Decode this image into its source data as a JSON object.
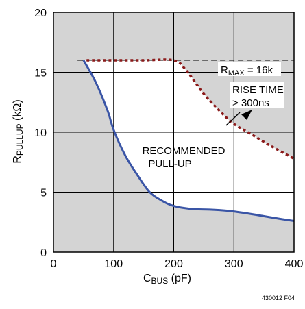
{
  "chart_data": {
    "type": "line",
    "title": "",
    "xlabel": {
      "main": "C",
      "sub": "BUS",
      "unit": " (pF)"
    },
    "ylabel": {
      "main": "R",
      "sub": "PULLUP",
      "unit": " (kΩ)"
    },
    "xlim": [
      0,
      400
    ],
    "ylim": [
      0,
      20
    ],
    "xticks": [
      "0",
      "100",
      "200",
      "300",
      "400"
    ],
    "yticks": [
      "0",
      "5",
      "10",
      "15",
      "20"
    ],
    "grid": true,
    "series": [
      {
        "style": "solid",
        "color": "#3a55a6",
        "x": [
          50,
          70,
          90,
          100,
          120,
          140,
          160,
          180,
          200,
          230,
          260,
          290,
          320,
          350,
          380,
          400
        ],
        "y": [
          16,
          14.2,
          11.8,
          10.2,
          8.0,
          6.4,
          5.0,
          4.3,
          3.85,
          3.6,
          3.55,
          3.45,
          3.25,
          3.0,
          2.75,
          2.6
        ]
      },
      {
        "style": "dotted",
        "color": "#8b1a1a",
        "x": [
          55,
          100,
          150,
          200,
          220,
          250,
          280,
          300,
          330,
          360,
          400
        ],
        "y": [
          16,
          16,
          16,
          16,
          15.2,
          13.2,
          11.6,
          10.7,
          9.8,
          8.9,
          7.8
        ]
      }
    ],
    "reference_line": {
      "y": 16,
      "x_from": 40,
      "x_to": 400,
      "style": "dashed"
    },
    "annotations": {
      "rmax": {
        "main": "R",
        "sub": "MAX",
        "rest": " = 16k"
      },
      "rise_line1": "RISE TIME",
      "rise_line2": "> 300ns",
      "recommended_line1": "RECOMMENDED",
      "recommended_line2": "PULL-UP"
    },
    "figure_code": "430012 F04",
    "colors": {
      "shade": "#d4d4d4",
      "plot_bg": "#ffffff"
    }
  }
}
